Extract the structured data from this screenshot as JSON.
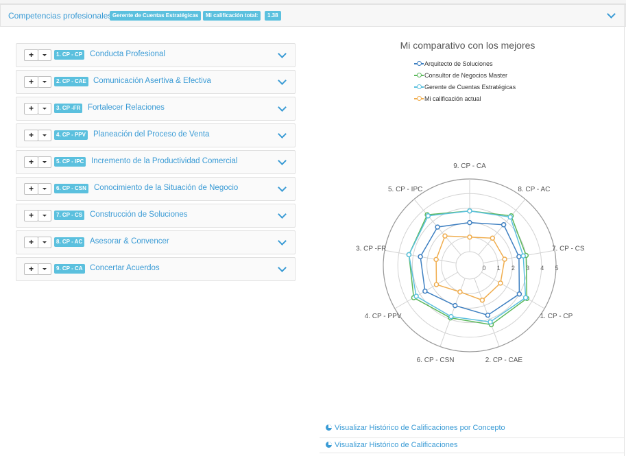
{
  "header": {
    "title": "Competencias profesionales:",
    "role_badge": "Gerente de Cuentas Estratégicas",
    "score_label": "Mi calificación total:",
    "score_value": "1.38"
  },
  "competencies": [
    {
      "code": "1. CP - CP",
      "label": "Conducta Profesional"
    },
    {
      "code": "2. CP - CAE",
      "label": "Comunicación Asertiva & Efectiva"
    },
    {
      "code": "3. CP -FR",
      "label": "Fortalecer Relaciones"
    },
    {
      "code": "4. CP - PPV",
      "label": "Planeación del Proceso de Venta"
    },
    {
      "code": "5. CP - IPC",
      "label": "Incremento de la Productividad Comercial"
    },
    {
      "code": "6. CP - CSN",
      "label": "Conocimiento de la Situación de Negocio"
    },
    {
      "code": "7. CP - CS",
      "label": "Construcción de Soluciones"
    },
    {
      "code": "8. CP - AC",
      "label": "Asesorar & Convencer"
    },
    {
      "code": "9. CP - CA",
      "label": "Concertar Acuerdos"
    }
  ],
  "buttons": {
    "plus": "+"
  },
  "chart_data": {
    "type": "radar",
    "title": "Mi comparativo con los mejores",
    "axes": [
      "9. CP - CA",
      "8. CP - AC",
      "7. CP - CS",
      "1. CP - CP",
      "2. CP - CAE",
      "6. CP - CSN",
      "4. CP - PPV",
      "3. CP -FR",
      "5. CP - IPC"
    ],
    "ticks": [
      "0",
      "1",
      "2",
      "3",
      "4",
      "5"
    ],
    "rlim": [
      0,
      5
    ],
    "grid": true,
    "legend_position": "top",
    "series": [
      {
        "name": "Arquitecto de Soluciones",
        "color": "#3d7fc1",
        "values": [
          2.0,
          2.7,
          2.5,
          3.0,
          2.7,
          2.0,
          2.6,
          2.5,
          2.5
        ]
      },
      {
        "name": "Consultor de Negocios Master",
        "color": "#5cb85c",
        "values": [
          2.8,
          3.5,
          3.0,
          3.6,
          3.4,
          2.9,
          3.5,
          3.3,
          3.6
        ]
      },
      {
        "name": "Gerente de Cuentas Estratégicas",
        "color": "#5bc0de",
        "values": [
          2.8,
          3.4,
          2.8,
          3.5,
          3.2,
          2.8,
          3.3,
          3.3,
          3.5
        ]
      },
      {
        "name": "Mi calificación actual",
        "color": "#f0ad4e",
        "values": [
          1.0,
          1.5,
          1.5,
          1.5,
          1.6,
          1.0,
          1.7,
          1.4,
          1.7
        ]
      }
    ]
  },
  "links": [
    "Visualizar Histórico de Calificaciones por Concepto",
    "Visualizar Histórico de Calificaciones"
  ]
}
